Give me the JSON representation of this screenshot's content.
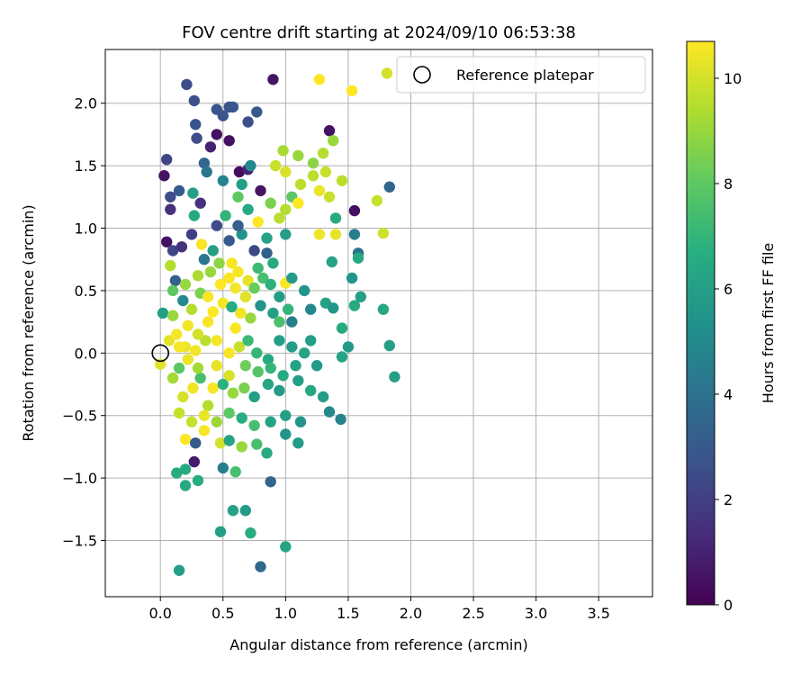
{
  "chart_data": {
    "type": "scatter",
    "title": "FOV centre drift starting at 2024/09/10 06:53:38",
    "xlabel": "Angular distance from reference (arcmin)",
    "ylabel": "Rotation from reference (arcmin)",
    "xlim": [
      -0.44,
      3.93
    ],
    "ylim": [
      -1.95,
      2.43
    ],
    "xticks": [
      "0.0",
      "0.5",
      "1.0",
      "1.5",
      "2.0",
      "2.5",
      "3.0",
      "3.5"
    ],
    "yticks": [
      "−1.5",
      "−1.0",
      "−0.5",
      "0.0",
      "0.5",
      "1.0",
      "1.5",
      "2.0"
    ],
    "grid": true,
    "legend": {
      "location": "top-right",
      "entries": [
        "Reference platepar"
      ]
    },
    "reference_point": {
      "x": 0.0,
      "y": 0.0,
      "label": "Reference platepar"
    },
    "colorbar": {
      "label": "Hours from first FF file",
      "range": [
        0,
        10.7
      ],
      "ticks": [
        "0",
        "2",
        "4",
        "6",
        "8",
        "10"
      ],
      "colormap": "viridis"
    },
    "series": [
      {
        "columns": [
          "x",
          "y",
          "hours"
        ],
        "points": [
          [
            0.21,
            2.15,
            2.5
          ],
          [
            0.27,
            2.02,
            2.6
          ],
          [
            0.55,
            1.97,
            2.8
          ],
          [
            0.58,
            1.97,
            2.9
          ],
          [
            0.9,
            2.19,
            0.6
          ],
          [
            0.45,
            1.95,
            2.8
          ],
          [
            0.5,
            1.9,
            2.8
          ],
          [
            0.7,
            1.85,
            2.6
          ],
          [
            0.77,
            1.93,
            3.0
          ],
          [
            0.28,
            1.83,
            2.7
          ],
          [
            0.29,
            1.72,
            2.5
          ],
          [
            0.4,
            1.65,
            1.0
          ],
          [
            0.45,
            1.75,
            0.5
          ],
          [
            0.55,
            1.7,
            0.4
          ],
          [
            1.35,
            1.78,
            0.5
          ],
          [
            0.05,
            1.55,
            2.2
          ],
          [
            0.03,
            1.42,
            0.5
          ],
          [
            0.35,
            1.52,
            3.5
          ],
          [
            0.37,
            1.45,
            4.2
          ],
          [
            0.63,
            1.45,
            0.3
          ],
          [
            0.7,
            1.47,
            1.0
          ],
          [
            0.72,
            1.5,
            5.0
          ],
          [
            0.5,
            1.38,
            4.8
          ],
          [
            0.15,
            1.3,
            3.0
          ],
          [
            0.08,
            1.25,
            2.5
          ],
          [
            0.26,
            1.28,
            6.0
          ],
          [
            0.65,
            1.35,
            6.0
          ],
          [
            0.8,
            1.3,
            0.6
          ],
          [
            0.08,
            1.15,
            1.5
          ],
          [
            0.27,
            1.1,
            6.5
          ],
          [
            0.32,
            1.2,
            1.5
          ],
          [
            0.52,
            1.1,
            7.0
          ],
          [
            0.7,
            1.15,
            6.5
          ],
          [
            0.88,
            1.2,
            8.5
          ],
          [
            0.62,
            1.25,
            8.0
          ],
          [
            0.78,
            1.05,
            10.7
          ],
          [
            1.0,
            1.15,
            9.5
          ],
          [
            1.05,
            1.25,
            8.0
          ],
          [
            1.1,
            1.2,
            10.7
          ],
          [
            0.95,
            1.08,
            9.6
          ],
          [
            0.05,
            0.89,
            0.5
          ],
          [
            0.1,
            0.82,
            2.3
          ],
          [
            0.17,
            0.85,
            1.5
          ],
          [
            0.33,
            0.87,
            10.6
          ],
          [
            0.42,
            0.82,
            6.0
          ],
          [
            0.55,
            0.9,
            3.0
          ],
          [
            0.65,
            0.95,
            5.5
          ],
          [
            0.85,
            0.92,
            6.2
          ],
          [
            1.0,
            0.95,
            6.0
          ],
          [
            0.08,
            0.7,
            9.5
          ],
          [
            0.12,
            0.58,
            3.3
          ],
          [
            0.1,
            0.5,
            8.0
          ],
          [
            0.2,
            0.55,
            9.0
          ],
          [
            0.3,
            0.62,
            9.3
          ],
          [
            0.47,
            0.72,
            8.8
          ],
          [
            0.57,
            0.72,
            10.6
          ],
          [
            0.62,
            0.65,
            10.6
          ],
          [
            0.7,
            0.58,
            10.3
          ],
          [
            0.78,
            0.68,
            7.2
          ],
          [
            0.9,
            0.72,
            6.5
          ],
          [
            1.0,
            0.56,
            10.6
          ],
          [
            1.05,
            0.6,
            5.8
          ],
          [
            1.15,
            0.5,
            5.5
          ],
          [
            0.02,
            0.32,
            6.0
          ],
          [
            0.1,
            0.3,
            9.0
          ],
          [
            0.18,
            0.42,
            5.0
          ],
          [
            0.25,
            0.35,
            9.5
          ],
          [
            0.32,
            0.48,
            8.5
          ],
          [
            0.38,
            0.45,
            10.6
          ],
          [
            0.42,
            0.33,
            10.7
          ],
          [
            0.5,
            0.4,
            10.6
          ],
          [
            0.57,
            0.37,
            6.6
          ],
          [
            0.64,
            0.32,
            10.5
          ],
          [
            0.72,
            0.28,
            9.0
          ],
          [
            0.8,
            0.38,
            5.5
          ],
          [
            0.9,
            0.32,
            6.0
          ],
          [
            1.05,
            0.25,
            4.5
          ],
          [
            1.2,
            0.35,
            5.0
          ],
          [
            1.32,
            0.4,
            6.2
          ],
          [
            1.38,
            0.36,
            5.6
          ],
          [
            0.0,
            -0.09,
            10.2
          ],
          [
            0.07,
            0.1,
            10.3
          ],
          [
            0.13,
            0.15,
            10.6
          ],
          [
            0.2,
            0.05,
            10.4
          ],
          [
            0.28,
            0.02,
            10.5
          ],
          [
            0.36,
            0.1,
            9.6
          ],
          [
            0.45,
            0.1,
            10.6
          ],
          [
            0.55,
            0.0,
            10.6
          ],
          [
            0.63,
            0.05,
            9.8
          ],
          [
            0.7,
            0.1,
            7.2
          ],
          [
            0.77,
            0.0,
            7.0
          ],
          [
            0.86,
            -0.05,
            6.5
          ],
          [
            0.95,
            0.1,
            6.0
          ],
          [
            1.05,
            0.05,
            5.8
          ],
          [
            1.15,
            0.0,
            6.2
          ],
          [
            0.1,
            -0.2,
            9.2
          ],
          [
            0.15,
            -0.12,
            8.0
          ],
          [
            0.26,
            -0.28,
            10.5
          ],
          [
            0.32,
            -0.2,
            7.5
          ],
          [
            0.42,
            -0.28,
            10.6
          ],
          [
            0.5,
            -0.25,
            6.8
          ],
          [
            0.58,
            -0.32,
            9.0
          ],
          [
            0.67,
            -0.28,
            8.5
          ],
          [
            0.75,
            -0.35,
            6.0
          ],
          [
            0.86,
            -0.25,
            6.3
          ],
          [
            0.95,
            -0.3,
            5.8
          ],
          [
            1.1,
            -0.22,
            6.0
          ],
          [
            1.2,
            -0.3,
            6.4
          ],
          [
            1.3,
            -0.35,
            5.9
          ],
          [
            0.15,
            -0.48,
            9.8
          ],
          [
            0.25,
            -0.55,
            9.8
          ],
          [
            0.35,
            -0.5,
            10.4
          ],
          [
            0.45,
            -0.55,
            9.1
          ],
          [
            0.55,
            -0.48,
            8.0
          ],
          [
            0.65,
            -0.52,
            6.6
          ],
          [
            0.75,
            -0.58,
            7.5
          ],
          [
            0.88,
            -0.55,
            6.2
          ],
          [
            1.0,
            -0.5,
            6.0
          ],
          [
            1.12,
            -0.55,
            5.5
          ],
          [
            1.35,
            -0.47,
            5.0
          ],
          [
            1.44,
            -0.53,
            4.8
          ],
          [
            0.2,
            -0.69,
            10.7
          ],
          [
            0.28,
            -0.72,
            3.0
          ],
          [
            0.35,
            -0.62,
            10.6
          ],
          [
            0.48,
            -0.72,
            10.0
          ],
          [
            0.55,
            -0.7,
            6.2
          ],
          [
            0.65,
            -0.75,
            9.0
          ],
          [
            0.77,
            -0.73,
            7.5
          ],
          [
            0.85,
            -0.8,
            6.5
          ],
          [
            1.0,
            -0.65,
            5.5
          ],
          [
            1.1,
            -0.72,
            5.8
          ],
          [
            0.98,
            1.62,
            9.3
          ],
          [
            1.1,
            1.58,
            9.0
          ],
          [
            1.22,
            1.52,
            8.8
          ],
          [
            1.32,
            1.45,
            9.8
          ],
          [
            1.38,
            1.7,
            9.0
          ],
          [
            1.3,
            1.6,
            9.5
          ],
          [
            1.22,
            1.42,
            9.6
          ],
          [
            1.45,
            1.38,
            9.6
          ],
          [
            1.0,
            1.45,
            10.1
          ],
          [
            0.92,
            1.5,
            9.8
          ],
          [
            1.27,
            1.3,
            10.4
          ],
          [
            1.35,
            1.25,
            9.8
          ],
          [
            1.12,
            1.35,
            9.6
          ],
          [
            1.55,
            1.14,
            0.4
          ],
          [
            1.55,
            0.95,
            4.5
          ],
          [
            1.58,
            0.8,
            4.0
          ],
          [
            1.58,
            0.76,
            6.5
          ],
          [
            1.53,
            0.6,
            5.5
          ],
          [
            1.73,
            1.22,
            9.8
          ],
          [
            1.78,
            0.96,
            9.9
          ],
          [
            1.83,
            1.33,
            3.5
          ],
          [
            1.4,
            1.08,
            6.5
          ],
          [
            1.27,
            0.95,
            10.5
          ],
          [
            1.4,
            0.95,
            10.3
          ],
          [
            1.27,
            2.19,
            10.7
          ],
          [
            1.53,
            2.1,
            10.7
          ],
          [
            1.81,
            2.24,
            10.0
          ],
          [
            1.37,
            0.73,
            6.2
          ],
          [
            1.6,
            0.45,
            6.0
          ],
          [
            1.55,
            0.38,
            6.5
          ],
          [
            1.78,
            0.35,
            6.4
          ],
          [
            1.83,
            0.06,
            6.0
          ],
          [
            1.87,
            -0.19,
            6.0
          ],
          [
            1.45,
            0.2,
            6.5
          ],
          [
            1.45,
            -0.03,
            6.2
          ],
          [
            1.5,
            0.05,
            5.8
          ],
          [
            0.13,
            -0.96,
            6.5
          ],
          [
            0.2,
            -0.93,
            6.5
          ],
          [
            0.2,
            -1.06,
            6.4
          ],
          [
            0.3,
            -1.02,
            6.6
          ],
          [
            0.27,
            -0.87,
            0.8
          ],
          [
            0.5,
            -0.92,
            4.5
          ],
          [
            0.6,
            -0.95,
            7.5
          ],
          [
            0.88,
            -1.03,
            3.5
          ],
          [
            0.58,
            -1.26,
            6.2
          ],
          [
            0.68,
            -1.26,
            5.8
          ],
          [
            0.48,
            -1.43,
            6.0
          ],
          [
            0.72,
            -1.44,
            6.6
          ],
          [
            1.0,
            -1.55,
            6.2
          ],
          [
            0.8,
            -1.71,
            3.6
          ],
          [
            0.15,
            -1.74,
            6.0
          ],
          [
            0.38,
            -0.42,
            9.5
          ],
          [
            0.45,
            -0.1,
            10.3
          ],
          [
            0.55,
            -0.18,
            10.1
          ],
          [
            0.6,
            0.2,
            10.6
          ],
          [
            0.68,
            0.45,
            10.2
          ],
          [
            0.75,
            0.52,
            8.2
          ],
          [
            0.82,
            0.6,
            7.5
          ],
          [
            0.88,
            0.55,
            6.8
          ],
          [
            0.95,
            0.45,
            5.9
          ],
          [
            0.68,
            -0.1,
            8.3
          ],
          [
            0.78,
            -0.15,
            7.8
          ],
          [
            0.88,
            -0.12,
            7.0
          ],
          [
            0.98,
            -0.18,
            6.5
          ],
          [
            1.08,
            -0.1,
            6.1
          ],
          [
            0.22,
            0.22,
            10.5
          ],
          [
            0.3,
            0.15,
            10.0
          ],
          [
            0.38,
            0.25,
            10.6
          ],
          [
            0.48,
            0.55,
            10.7
          ],
          [
            0.55,
            0.6,
            10.6
          ],
          [
            0.6,
            0.52,
            10.5
          ],
          [
            0.4,
            0.65,
            9.0
          ],
          [
            0.35,
            0.75,
            4.2
          ],
          [
            0.25,
            0.95,
            2.0
          ],
          [
            0.45,
            1.02,
            2.5
          ],
          [
            0.62,
            1.02,
            3.2
          ],
          [
            0.75,
            0.82,
            2.3
          ],
          [
            0.85,
            0.8,
            3.3
          ],
          [
            0.15,
            0.05,
            10.6
          ],
          [
            0.22,
            -0.05,
            10.4
          ],
          [
            0.3,
            -0.12,
            9.2
          ],
          [
            0.18,
            -0.35,
            10.0
          ],
          [
            1.2,
            0.1,
            6.0
          ],
          [
            1.25,
            -0.1,
            5.7
          ],
          [
            0.95,
            0.25,
            7.6
          ],
          [
            1.02,
            0.35,
            7.0
          ]
        ]
      }
    ]
  }
}
